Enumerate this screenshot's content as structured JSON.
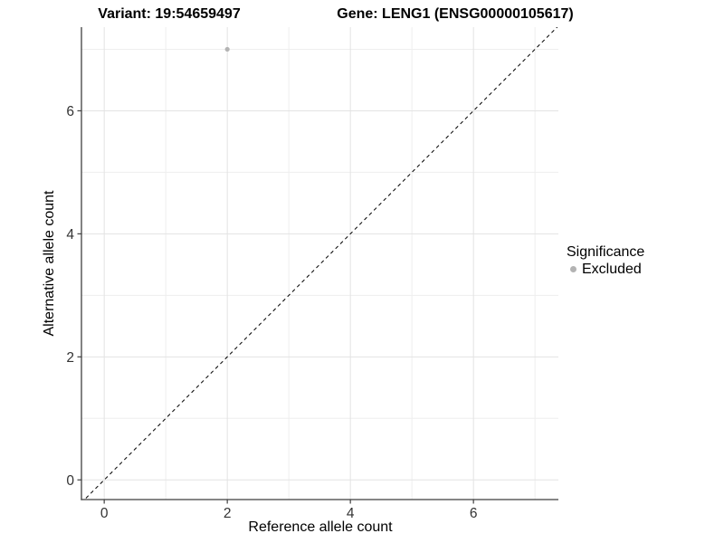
{
  "chart_data": {
    "type": "scatter",
    "titles": [
      "Variant: 19:54659497",
      "Gene: LENG1 (ENSG00000105617)"
    ],
    "xlabel": "Reference allele count",
    "ylabel": "Alternative allele count",
    "xlim": [
      -0.37,
      7.38
    ],
    "ylim": [
      -0.32,
      7.36
    ],
    "x_major_ticks": [
      0,
      2,
      4,
      6
    ],
    "y_major_ticks": [
      0,
      2,
      4,
      6
    ],
    "x_minor_ticks": [
      1,
      3,
      5,
      7
    ],
    "y_minor_ticks": [
      1,
      3,
      5,
      7
    ],
    "grid": "major and minor gridlines, light gray on white",
    "reference_line": {
      "kind": "identity y=x",
      "style": "dashed",
      "color": "#000000"
    },
    "series": [
      {
        "name": "Excluded",
        "marker": "circle",
        "color": "#b3b3b3",
        "points": [
          {
            "x": 2,
            "y": 7
          }
        ]
      }
    ],
    "legend": {
      "title": "Significance",
      "position": "right-middle",
      "items": [
        {
          "label": "Excluded",
          "color": "#b3b3b3"
        }
      ]
    },
    "colors": {
      "grid_major": "#e3e3e3",
      "grid_minor": "#eeeeee",
      "axis_line": "#3f3f3f",
      "tick_label": "#333333",
      "background": "#ffffff"
    }
  }
}
